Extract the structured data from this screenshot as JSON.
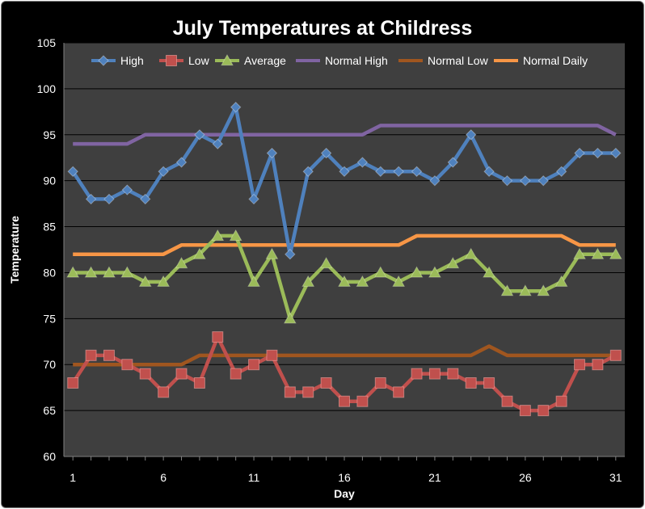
{
  "chart_data": {
    "type": "line",
    "title": "July Temperatures at Childress",
    "xlabel": "Day",
    "ylabel": "Temperature",
    "x": [
      1,
      2,
      3,
      4,
      5,
      6,
      7,
      8,
      9,
      10,
      11,
      12,
      13,
      14,
      15,
      16,
      17,
      18,
      19,
      20,
      21,
      22,
      23,
      24,
      25,
      26,
      27,
      28,
      29,
      30,
      31
    ],
    "xticks": [
      1,
      6,
      11,
      16,
      21,
      26,
      31
    ],
    "ylim": [
      60,
      105
    ],
    "yticks": [
      60,
      65,
      70,
      75,
      80,
      85,
      90,
      95,
      100,
      105
    ],
    "grid": "horizontal",
    "legend_position": "top",
    "series": [
      {
        "name": "High",
        "color": "#4f81bd",
        "marker": "diamond",
        "values": [
          91,
          88,
          88,
          89,
          88,
          91,
          92,
          95,
          94,
          98,
          88,
          93,
          82,
          91,
          93,
          91,
          92,
          91,
          91,
          91,
          90,
          92,
          95,
          91,
          90,
          90,
          90,
          91,
          93,
          93,
          93
        ]
      },
      {
        "name": "Low",
        "color": "#c0504d",
        "marker": "square",
        "values": [
          68,
          71,
          71,
          70,
          69,
          67,
          69,
          68,
          73,
          69,
          70,
          71,
          67,
          67,
          68,
          66,
          66,
          68,
          67,
          69,
          69,
          69,
          68,
          68,
          66,
          65,
          65,
          66,
          70,
          70,
          71
        ]
      },
      {
        "name": "Average",
        "color": "#9bbb59",
        "marker": "triangle",
        "values": [
          80,
          80,
          80,
          80,
          79,
          79,
          81,
          82,
          84,
          84,
          79,
          82,
          75,
          79,
          81,
          79,
          79,
          80,
          79,
          80,
          80,
          81,
          82,
          80,
          78,
          78,
          78,
          79,
          82,
          82,
          82
        ]
      },
      {
        "name": "Normal High",
        "color": "#8064a2",
        "marker": "none",
        "values": [
          94,
          94,
          94,
          94,
          95,
          95,
          95,
          95,
          95,
          95,
          95,
          95,
          95,
          95,
          95,
          95,
          95,
          96,
          96,
          96,
          96,
          96,
          96,
          96,
          96,
          96,
          96,
          96,
          96,
          96,
          95
        ]
      },
      {
        "name": "Normal Low",
        "color": "#a0561f",
        "marker": "none",
        "values": [
          70,
          70,
          70,
          70,
          70,
          70,
          70,
          71,
          71,
          71,
          71,
          71,
          71,
          71,
          71,
          71,
          71,
          71,
          71,
          71,
          71,
          71,
          71,
          72,
          71,
          71,
          71,
          71,
          71,
          71,
          71
        ]
      },
      {
        "name": "Normal Daily",
        "color": "#f79646",
        "marker": "none",
        "values": [
          82,
          82,
          82,
          82,
          82,
          82,
          83,
          83,
          83,
          83,
          83,
          83,
          83,
          83,
          83,
          83,
          83,
          83,
          83,
          84,
          84,
          84,
          84,
          84,
          84,
          84,
          84,
          84,
          83,
          83,
          83
        ]
      }
    ]
  }
}
